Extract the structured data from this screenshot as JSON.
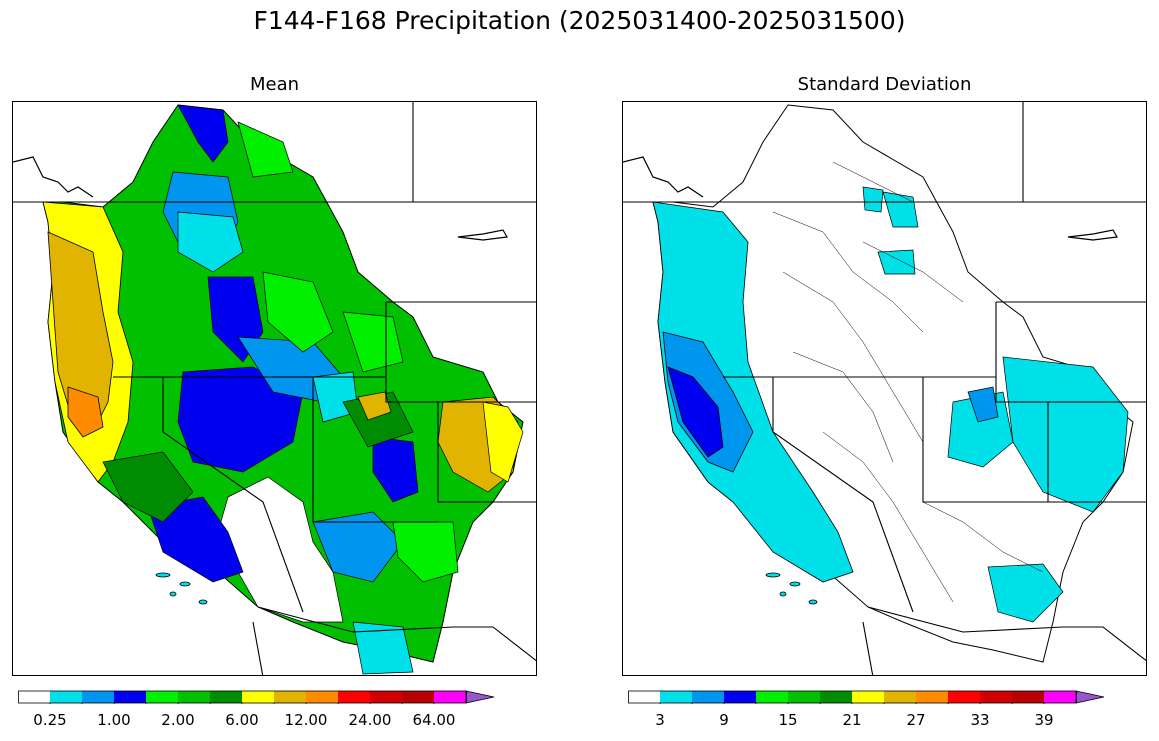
{
  "title": "F144-F168 Precipitation (2025031400-2025031500)",
  "panels": [
    {
      "title": "Mean"
    },
    {
      "title": "Standard Deviation"
    }
  ],
  "colorbars": {
    "mean": {
      "colors": [
        "#ffffff",
        "#00e0e8",
        "#0096f0",
        "#0000f0",
        "#00f000",
        "#00c000",
        "#008c00",
        "#ffff00",
        "#e0b400",
        "#ff8c00",
        "#ff0000",
        "#d00000",
        "#b80000",
        "#ff00ff",
        "#9955cc"
      ],
      "labels": [
        "0.25",
        "1.00",
        "2.00",
        "6.00",
        "12.00",
        "24.00",
        "64.00"
      ]
    },
    "sd": {
      "colors": [
        "#ffffff",
        "#00e0e8",
        "#0096f0",
        "#0000f0",
        "#00f000",
        "#00c000",
        "#008c00",
        "#ffff00",
        "#e0b400",
        "#ff8c00",
        "#ff0000",
        "#d00000",
        "#b80000",
        "#ff00ff",
        "#9955cc"
      ],
      "labels": [
        "3",
        "9",
        "15",
        "21",
        "27",
        "33",
        "39"
      ]
    }
  }
}
